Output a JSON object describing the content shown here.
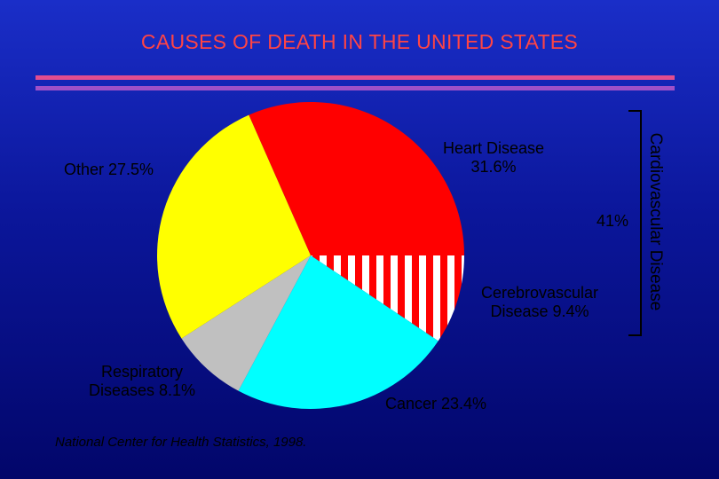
{
  "title": "CAUSES OF DEATH IN THE UNITED STATES",
  "source": "National Center for Health Statistics, 1998.",
  "bracket_label": "Cardiovascular Disease",
  "bracket_value": "41%",
  "labels": {
    "heart": [
      "Heart Disease",
      "31.6%"
    ],
    "other": "Other  27.5%",
    "cerebro": [
      "Cerebrovascular",
      "Disease   9.4%"
    ],
    "respiratory": [
      "Respiratory",
      "Diseases  8.1%"
    ],
    "cancer": "Cancer  23.4%"
  },
  "colors": {
    "heart": "#ff0000",
    "cerebro_stripe_a": "#ff0000",
    "cerebro_stripe_b": "#ffffff",
    "cancer": "#00ffff",
    "respiratory": "#c0c0c0",
    "other": "#ffff00",
    "title": "#ff4444",
    "rule_top": "#e24d8f",
    "rule_bottom": "#a050c8"
  },
  "chart_data": {
    "type": "pie",
    "title": "CAUSES OF DEATH IN THE UNITED STATES",
    "categories": [
      "Heart Disease",
      "Cerebrovascular Disease",
      "Cancer",
      "Respiratory Diseases",
      "Other"
    ],
    "values": [
      31.6,
      9.4,
      23.4,
      8.1,
      27.5
    ],
    "units": "%",
    "group": {
      "name": "Cardiovascular Disease",
      "members": [
        "Heart Disease",
        "Cerebrovascular Disease"
      ],
      "value": 41
    }
  }
}
